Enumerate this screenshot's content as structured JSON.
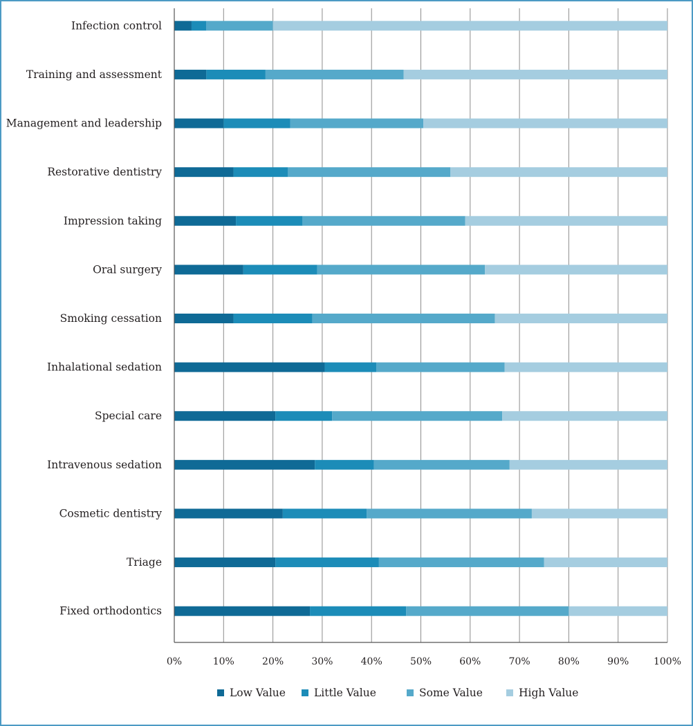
{
  "chart_data": {
    "type": "bar",
    "orientation": "horizontal",
    "stacked": true,
    "percent_scale": true,
    "categories": [
      "Infection control",
      "Training and assessment",
      "Management and leadership",
      "Restorative dentistry",
      "Impression taking",
      "Oral surgery",
      "Smoking cessation",
      "Inhalational sedation",
      "Special care",
      "Intravenous sedation",
      "Cosmetic dentistry",
      "Triage",
      "Fixed orthodontics"
    ],
    "series": [
      {
        "name": "Low Value",
        "color": "#0f6a96",
        "values": [
          3.5,
          6.5,
          10,
          12,
          12.5,
          14,
          12,
          30.5,
          20.5,
          28.5,
          22,
          20.5,
          27.5
        ]
      },
      {
        "name": "Little Value",
        "color": "#1c8cb8",
        "values": [
          3,
          12,
          13.5,
          11,
          13.5,
          15,
          16,
          10.5,
          11.5,
          12,
          17,
          21,
          19.5
        ]
      },
      {
        "name": "Some Value",
        "color": "#55a9ca",
        "values": [
          13.5,
          28,
          27,
          33,
          33,
          34,
          37,
          26,
          34.5,
          27.5,
          33.5,
          33.5,
          33
        ]
      },
      {
        "name": "High Value",
        "color": "#a5cde0",
        "values": [
          80,
          53.5,
          49.5,
          44,
          41,
          37,
          35,
          33,
          33.5,
          32,
          27.5,
          25,
          20
        ]
      }
    ],
    "xlim": [
      0,
      100
    ],
    "x_ticks": [
      "0%",
      "10%",
      "20%",
      "30%",
      "40%",
      "50%",
      "60%",
      "70%",
      "80%",
      "90%",
      "100%"
    ],
    "grid": true,
    "legend_position": "bottom",
    "title": "",
    "xlabel": "",
    "ylabel": ""
  },
  "colors": {
    "frame_border": "#4c9ac4",
    "gridline": "#8c8c8c",
    "text": "#231f20"
  }
}
